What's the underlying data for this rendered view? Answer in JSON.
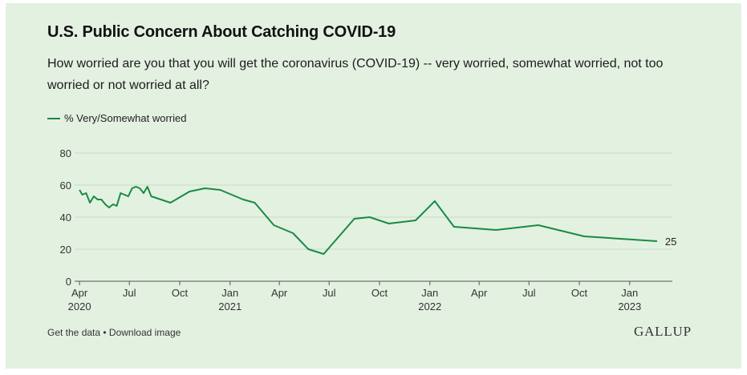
{
  "chart_data": {
    "type": "line",
    "title": "U.S. Public Concern About Catching COVID-19",
    "subtitle": "How worried are you that you will get the coronavirus (COVID-19) -- very worried, somewhat worried, not too worried or not worried at all?",
    "series": [
      {
        "name": "% Very/Somewhat worried",
        "color": "#1a8a45",
        "points": [
          [
            "2020-04-01",
            57
          ],
          [
            "2020-04-06",
            54
          ],
          [
            "2020-04-13",
            55
          ],
          [
            "2020-04-20",
            49
          ],
          [
            "2020-04-27",
            53
          ],
          [
            "2020-05-04",
            51
          ],
          [
            "2020-05-11",
            51
          ],
          [
            "2020-05-18",
            48
          ],
          [
            "2020-05-25",
            46
          ],
          [
            "2020-06-01",
            48
          ],
          [
            "2020-06-08",
            47
          ],
          [
            "2020-06-15",
            55
          ],
          [
            "2020-06-29",
            53
          ],
          [
            "2020-07-06",
            58
          ],
          [
            "2020-07-13",
            59
          ],
          [
            "2020-07-20",
            58
          ],
          [
            "2020-07-27",
            55
          ],
          [
            "2020-08-03",
            59
          ],
          [
            "2020-08-10",
            53
          ],
          [
            "2020-09-14",
            49
          ],
          [
            "2020-10-19",
            56
          ],
          [
            "2020-11-16",
            58
          ],
          [
            "2020-12-14",
            57
          ],
          [
            "2021-01-25",
            51
          ],
          [
            "2021-02-15",
            49
          ],
          [
            "2021-03-22",
            35
          ],
          [
            "2021-04-26",
            30
          ],
          [
            "2021-05-24",
            20
          ],
          [
            "2021-06-21",
            17
          ],
          [
            "2021-08-16",
            39
          ],
          [
            "2021-09-13",
            40
          ],
          [
            "2021-10-18",
            36
          ],
          [
            "2021-12-06",
            38
          ],
          [
            "2022-01-10",
            50
          ],
          [
            "2022-02-14",
            34
          ],
          [
            "2022-05-02",
            32
          ],
          [
            "2022-07-18",
            35
          ],
          [
            "2022-10-10",
            28
          ],
          [
            "2023-02-20",
            25
          ]
        ]
      }
    ],
    "end_label": "25",
    "y_ticks": [
      "0",
      "20",
      "40",
      "60",
      "80"
    ],
    "ylim": [
      0,
      80
    ],
    "x_ticks": [
      {
        "date": "2020-04-01",
        "label": "Apr",
        "year": "2020"
      },
      {
        "date": "2020-07-01",
        "label": "Jul",
        "year": ""
      },
      {
        "date": "2020-10-01",
        "label": "Oct",
        "year": ""
      },
      {
        "date": "2021-01-01",
        "label": "Jan",
        "year": "2021"
      },
      {
        "date": "2021-04-01",
        "label": "Apr",
        "year": ""
      },
      {
        "date": "2021-07-01",
        "label": "Jul",
        "year": ""
      },
      {
        "date": "2021-10-01",
        "label": "Oct",
        "year": ""
      },
      {
        "date": "2022-01-01",
        "label": "Jan",
        "year": "2022"
      },
      {
        "date": "2022-04-01",
        "label": "Apr",
        "year": ""
      },
      {
        "date": "2022-07-01",
        "label": "Jul",
        "year": ""
      },
      {
        "date": "2022-10-01",
        "label": "Oct",
        "year": ""
      },
      {
        "date": "2023-01-01",
        "label": "Jan",
        "year": "2023"
      }
    ],
    "xlim": [
      "2020-03-23",
      "2023-03-20"
    ],
    "grid": true,
    "legend_position": "top-left"
  },
  "footer": {
    "get_data": "Get the data",
    "separator": " • ",
    "download": "Download image"
  },
  "brand": "GALLUP"
}
